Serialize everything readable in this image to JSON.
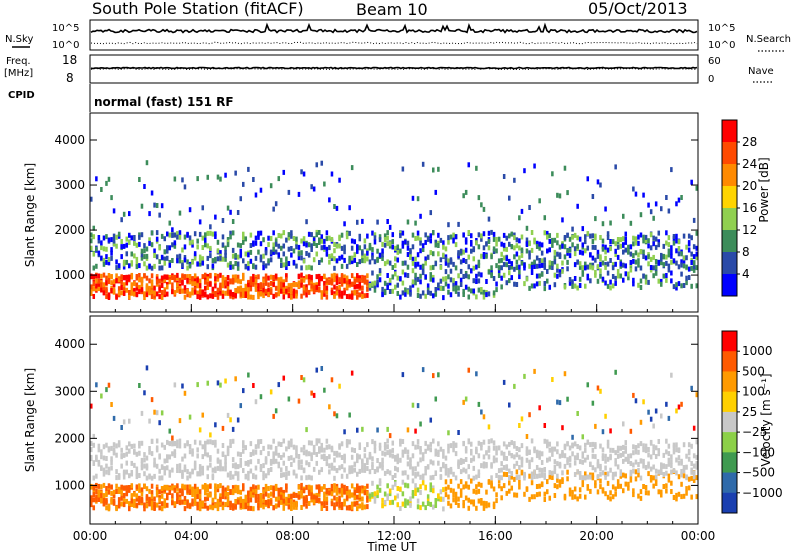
{
  "header": {
    "title": "South Pole Station (fitACF)",
    "beam": "Beam 10",
    "date": "05/Oct/2013"
  },
  "top_panels": {
    "nsky_label": "N.Sky",
    "nsky_ticks": [
      "10^5",
      "10^0"
    ],
    "nsearch_label": "N.Search",
    "nsearch_ticks": [
      "10^5",
      "10^0"
    ],
    "freq_label": "Freq.",
    "freq_unit": "[MHz]",
    "freq_ticks": [
      "18",
      "8"
    ],
    "nave_label": "Nave",
    "nave_ticks": [
      "60",
      "0"
    ],
    "cpid_label": "CPID",
    "cpid_text": "normal (fast) 151 RF"
  },
  "chart_data": [
    {
      "type": "heatmap",
      "name": "power-panel",
      "ylabel": "Slant Range [km]",
      "xlabel": "",
      "y_ticks": [
        1000,
        2000,
        3000,
        4000
      ],
      "ylim": [
        180,
        4600
      ],
      "x_ticks": [
        "00:00",
        "04:00",
        "08:00",
        "12:00",
        "16:00",
        "20:00",
        "00:00"
      ],
      "xlim_hours": [
        0,
        24
      ],
      "colorbar": {
        "label": "Power [dB]",
        "ticks": [
          4,
          8,
          12,
          16,
          20,
          24,
          28
        ],
        "colors": [
          "#0000ff",
          "#2a4aa8",
          "#3c8c5a",
          "#90d050",
          "#ffd400",
          "#ff8a00",
          "#ff4a00",
          "#ff0000"
        ]
      }
    },
    {
      "type": "heatmap",
      "name": "velocity-panel",
      "ylabel": "Slant Range [km]",
      "xlabel": "Time UT",
      "y_ticks": [
        1000,
        2000,
        3000,
        4000
      ],
      "ylim": [
        180,
        4600
      ],
      "x_ticks": [
        "00:00",
        "04:00",
        "08:00",
        "12:00",
        "16:00",
        "20:00",
        "00:00"
      ],
      "xlim_hours": [
        0,
        24
      ],
      "colorbar": {
        "label": "Velocity [m s⁻¹]",
        "ticks": [
          "1000",
          "500",
          "100",
          "25",
          "−25",
          "−100",
          "−500",
          "−1000"
        ],
        "colors": [
          "#1a3fb0",
          "#2f6aaa",
          "#3f9a50",
          "#8cd048",
          "#c8c8c8",
          "#ffd000",
          "#ff9a00",
          "#ff5a00",
          "#ff0000"
        ]
      }
    }
  ]
}
